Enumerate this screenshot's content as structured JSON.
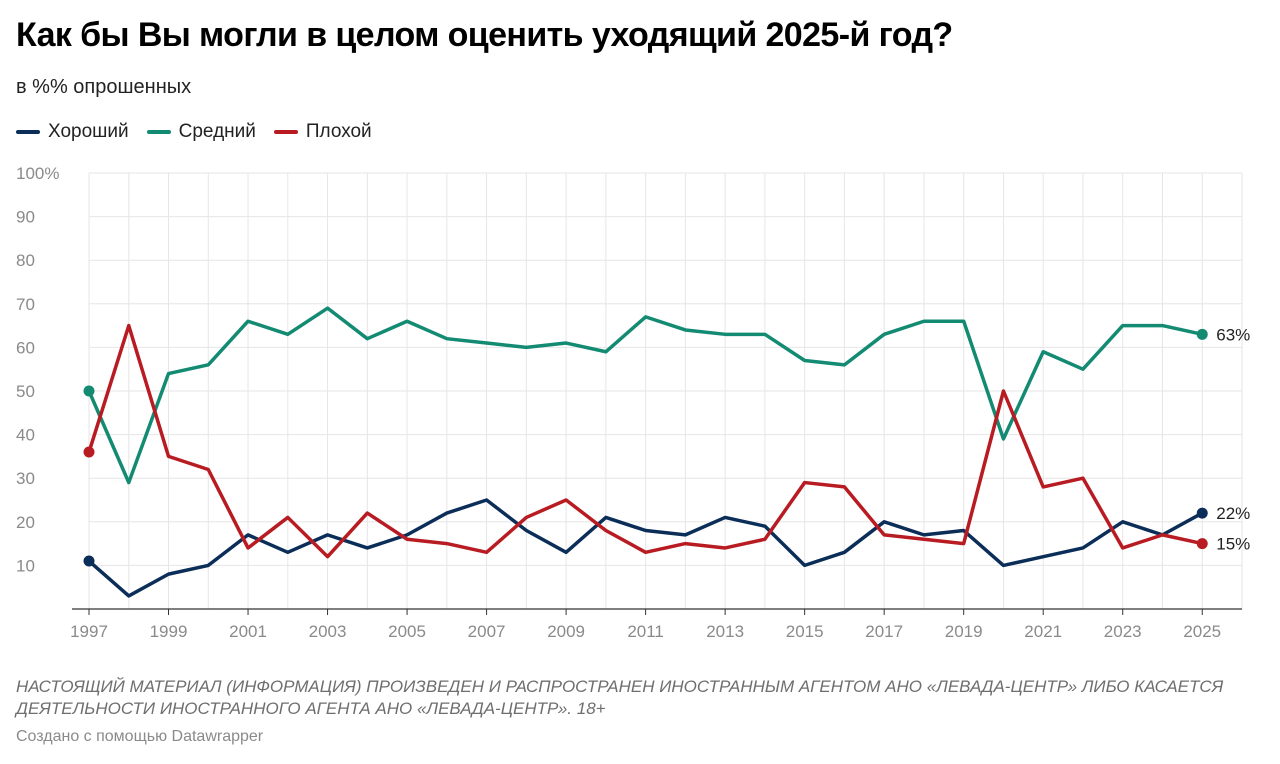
{
  "title": "Как бы Вы могли в целом оценить уходящий 2025-й год?",
  "subtitle": "в %% опрошенных",
  "legend": [
    {
      "label": "Хороший",
      "color": "#0b2e59"
    },
    {
      "label": "Средний",
      "color": "#138a72"
    },
    {
      "label": "Плохой",
      "color": "#b81c22"
    }
  ],
  "footer": {
    "disclaimer": "НАСТОЯЩИЙ МАТЕРИАЛ (ИНФОРМАЦИЯ) ПРОИЗВЕДЕН И РАСПРОСТРАНЕН ИНОСТРАННЫМ АГЕНТОМ АНО «ЛЕВАДА-ЦЕНТР» ЛИБО КАСАЕТСЯ ДЕЯТЕЛЬНОСТИ ИНОСТРАННОГО АГЕНТА АНО «ЛЕВАДА-ЦЕНТР». 18+",
    "credit": "Создано с помощью Datawrapper"
  },
  "chart_data": {
    "type": "line",
    "title": "Как бы Вы могли в целом оценить уходящий 2025-й год?",
    "subtitle": "в %% опрошенных",
    "x": [
      1997,
      1998,
      1999,
      2000,
      2001,
      2002,
      2003,
      2004,
      2005,
      2006,
      2007,
      2008,
      2009,
      2010,
      2011,
      2012,
      2013,
      2014,
      2015,
      2016,
      2017,
      2018,
      2019,
      2020,
      2021,
      2022,
      2023,
      2024,
      2025
    ],
    "x_ticks": [
      1997,
      1999,
      2001,
      2003,
      2005,
      2007,
      2009,
      2011,
      2013,
      2015,
      2017,
      2019,
      2021,
      2023,
      2025
    ],
    "x_tick_labels": [
      "1997",
      "1999",
      "2001",
      "2003",
      "2005",
      "2007",
      "2009",
      "2011",
      "2013",
      "2015",
      "2017",
      "2019",
      "2021",
      "2023",
      "2025"
    ],
    "xlim": [
      1997,
      2026
    ],
    "ylim": [
      0,
      100
    ],
    "y_ticks": [
      10,
      20,
      30,
      40,
      50,
      60,
      70,
      80,
      90,
      100
    ],
    "y_tick_labels": [
      "10",
      "20",
      "30",
      "40",
      "50",
      "60",
      "70",
      "80",
      "90",
      "100%"
    ],
    "grid": true,
    "legend_position": "top-left",
    "series": [
      {
        "name": "Хороший",
        "color": "#0b2e59",
        "values": [
          11,
          3,
          8,
          10,
          17,
          13,
          17,
          14,
          17,
          22,
          25,
          18,
          13,
          21,
          18,
          17,
          21,
          19,
          10,
          13,
          20,
          17,
          18,
          10,
          12,
          14,
          20,
          17,
          22
        ],
        "end_label": "22%"
      },
      {
        "name": "Средний",
        "color": "#138a72",
        "values": [
          50,
          29,
          54,
          56,
          66,
          63,
          69,
          62,
          66,
          62,
          61,
          60,
          61,
          59,
          67,
          64,
          63,
          63,
          57,
          56,
          63,
          66,
          66,
          39,
          59,
          55,
          65,
          65,
          63
        ],
        "end_label": "63%"
      },
      {
        "name": "Плохой",
        "color": "#b81c22",
        "values": [
          36,
          65,
          35,
          32,
          14,
          21,
          12,
          22,
          16,
          15,
          13,
          21,
          25,
          18,
          13,
          15,
          14,
          16,
          29,
          28,
          17,
          16,
          15,
          50,
          28,
          30,
          14,
          17,
          15
        ],
        "end_label": "15%"
      }
    ]
  }
}
